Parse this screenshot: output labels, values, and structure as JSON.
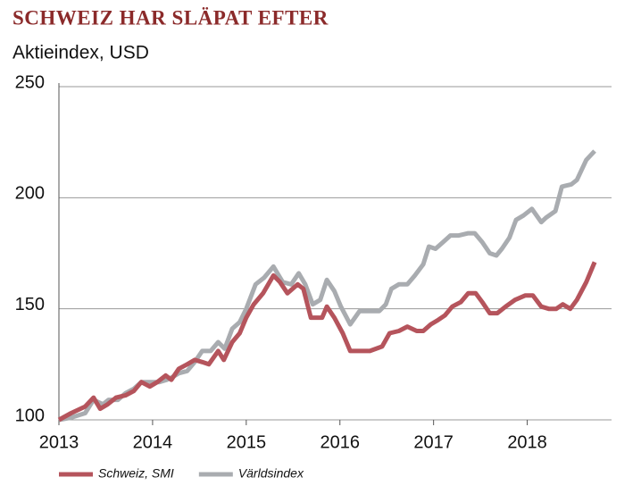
{
  "chart_data": {
    "type": "line",
    "title": "SCHWEIZ HAR SLÄPAT EFTER",
    "subtitle": "Aktieindex, USD",
    "xlim": [
      2013,
      2018.9
    ],
    "xticks": [
      2013,
      2014,
      2015,
      2016,
      2017,
      2018
    ],
    "ylim": [
      100,
      250
    ],
    "yticks": [
      100,
      150,
      200,
      250
    ],
    "grid": true,
    "legend": "bottom",
    "series": [
      {
        "name": "Schweiz, SMI",
        "color": "#b5545c",
        "x": [
          2013.0,
          2013.13,
          2013.28,
          2013.37,
          2013.44,
          2013.52,
          2013.61,
          2013.71,
          2013.8,
          2013.88,
          2013.97,
          2014.05,
          2014.14,
          2014.2,
          2014.28,
          2014.37,
          2014.45,
          2014.53,
          2014.6,
          2014.7,
          2014.76,
          2014.85,
          2014.93,
          2015.0,
          2015.08,
          2015.18,
          2015.29,
          2015.36,
          2015.44,
          2015.55,
          2015.61,
          2015.69,
          2015.81,
          2015.86,
          2015.94,
          2016.03,
          2016.11,
          2016.21,
          2016.32,
          2016.45,
          2016.53,
          2016.63,
          2016.72,
          2016.82,
          2016.89,
          2016.97,
          2017.05,
          2017.12,
          2017.2,
          2017.29,
          2017.37,
          2017.45,
          2017.52,
          2017.6,
          2017.68,
          2017.77,
          2017.87,
          2017.98,
          2018.06,
          2018.15,
          2018.23,
          2018.31,
          2018.38,
          2018.46,
          2018.53,
          2018.63,
          2018.72
        ],
        "values": [
          100,
          103,
          106,
          110,
          105,
          107,
          110,
          111,
          113,
          117,
          115,
          117,
          120,
          118,
          123,
          125,
          127,
          126,
          125,
          131,
          127,
          135,
          139,
          146,
          152,
          157,
          165,
          162,
          157,
          161,
          159,
          146,
          146,
          151,
          146,
          139,
          131,
          131,
          131,
          133,
          139,
          140,
          142,
          140,
          140,
          143,
          145,
          147,
          151,
          153,
          157,
          157,
          153,
          148,
          148,
          151,
          154,
          156,
          156,
          151,
          150,
          150,
          152,
          150,
          154,
          162,
          171
        ]
      },
      {
        "name": "Världsindex",
        "color": "#a9acb0",
        "x": [
          2013.0,
          2013.13,
          2013.28,
          2013.37,
          2013.47,
          2013.53,
          2013.63,
          2013.71,
          2013.8,
          2013.88,
          2013.97,
          2014.07,
          2014.15,
          2014.2,
          2014.28,
          2014.37,
          2014.45,
          2014.53,
          2014.62,
          2014.7,
          2014.77,
          2014.85,
          2014.93,
          2015.0,
          2015.1,
          2015.19,
          2015.29,
          2015.39,
          2015.48,
          2015.56,
          2015.63,
          2015.71,
          2015.79,
          2015.86,
          2015.94,
          2016.01,
          2016.11,
          2016.21,
          2016.32,
          2016.42,
          2016.49,
          2016.55,
          2016.63,
          2016.72,
          2016.8,
          2016.89,
          2016.95,
          2017.02,
          2017.1,
          2017.18,
          2017.27,
          2017.37,
          2017.44,
          2017.52,
          2017.6,
          2017.67,
          2017.73,
          2017.81,
          2017.88,
          2017.96,
          2018.05,
          2018.15,
          2018.2,
          2018.3,
          2018.37,
          2018.47,
          2018.53,
          2018.63,
          2018.72
        ],
        "values": [
          100,
          101,
          103,
          109,
          107,
          109,
          109,
          112,
          114,
          117,
          117,
          117,
          118,
          119,
          121,
          122,
          126,
          131,
          131,
          135,
          132,
          141,
          144,
          150,
          161,
          164,
          169,
          162,
          161,
          166,
          161,
          152,
          154,
          163,
          158,
          151,
          143,
          149,
          149,
          149,
          152,
          159,
          161,
          161,
          165,
          170,
          178,
          177,
          180,
          183,
          183,
          184,
          184,
          180,
          175,
          174,
          177,
          182,
          190,
          192,
          195,
          189,
          191,
          194,
          205,
          206,
          208,
          217,
          221
        ]
      }
    ]
  }
}
